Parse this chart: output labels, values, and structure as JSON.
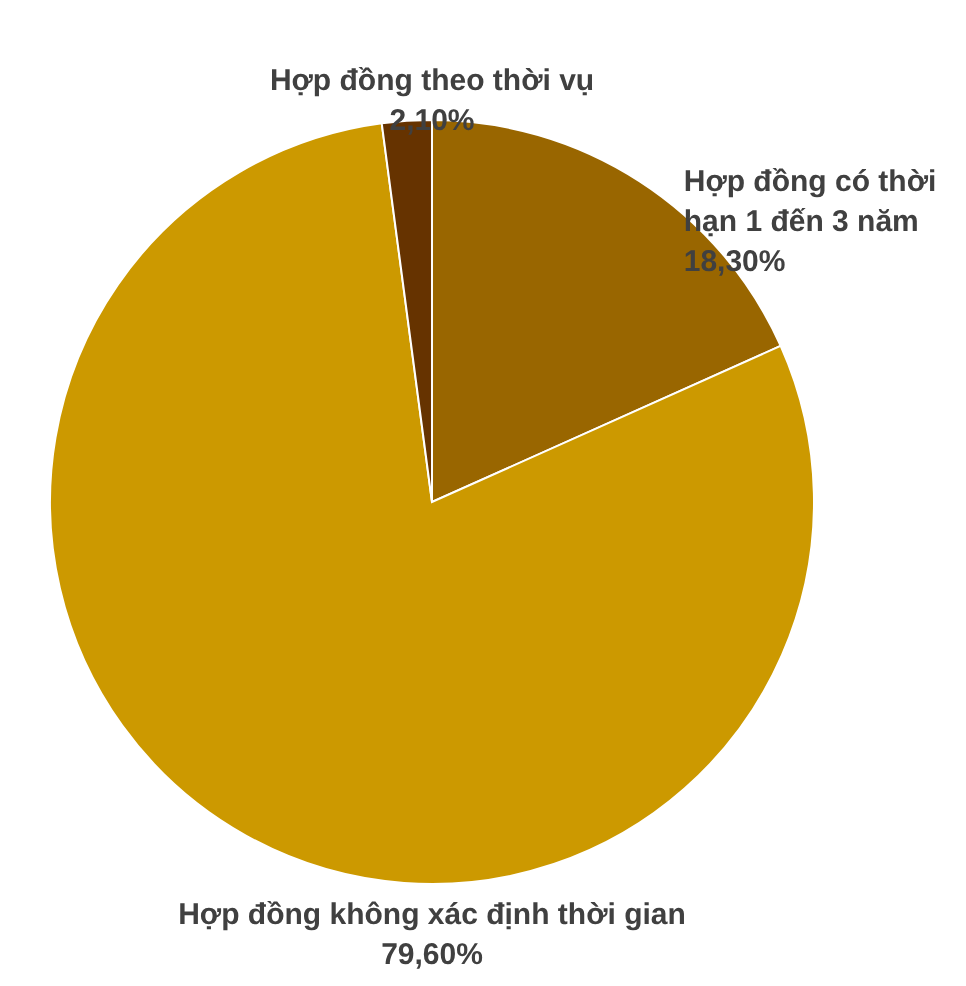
{
  "chart_data": {
    "type": "pie",
    "categories": [
      "Hợp đồng có thời hạn 1 đến 3 năm",
      "Hợp đồng không xác định thời gian",
      "Hợp đồng theo thời vụ"
    ],
    "values": [
      18.3,
      79.6,
      2.1
    ],
    "value_labels": [
      "18,30%",
      "79,60%",
      "2,10%"
    ],
    "colors": [
      "#996600",
      "#cc9900",
      "#663300"
    ]
  }
}
